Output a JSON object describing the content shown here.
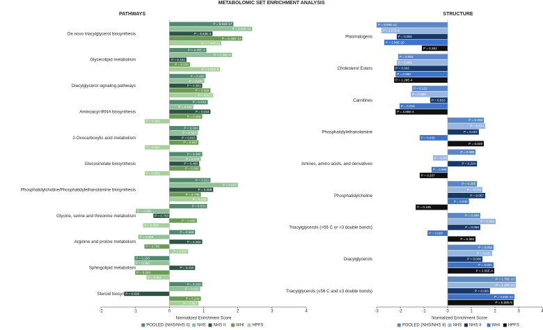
{
  "title": "METABOLOMIC SET ENRICHMENT ANALYSIS",
  "chart_data": [
    {
      "type": "bar",
      "orientation": "horizontal",
      "title": "PATHWAYS",
      "x_label": "Normalized Enrichment Score",
      "categories": [
        "De novo triacylglycerol biosynthesis",
        "Glycerolipid metabolism",
        "Diacylglycerol signaling pathways",
        "Aminoacyl-tRNA biosynthesis",
        "2-Oxocarboxylic acid metabolism",
        "Glucosinolate biosynthesis",
        "Phosphatidylcholine/Phosphatidylethanolamine biosynthesis",
        "Glycine, serine and threonine metabolism",
        "Arginine and proline metabolism",
        "Sphingolipid metabolism",
        "Steroid biosynthesis"
      ],
      "xlim": [
        -2,
        4
      ],
      "xticks": [
        -2,
        -1,
        0,
        1,
        2,
        3,
        4
      ],
      "series": [
        {
          "name": "POOLED (NHS/NHS II)",
          "color": "#4f8a6e",
          "values": [
            1.87,
            1.08,
            1.06,
            1.12,
            0.87,
            0.96,
            1.2,
            1.1,
            0.75,
            -1.02,
            0.96
          ],
          "p_labels": [
            "P = 8.61E-17",
            "P = 4.35E-3",
            "P = 0.153",
            "P = 0.011",
            "P = 0.424",
            "P = 0.260",
            "P = 0.011",
            "P = 0.031",
            "P = 0.968",
            "P = 0.153",
            "P = 0.153"
          ]
        },
        {
          "name": "NHS",
          "color": "#93c098",
          "values": [
            2.42,
            1.83,
            1.02,
            0.7,
            0.83,
            0.92,
            2.0,
            -0.98,
            -0.91,
            -1.02,
            0.9
          ],
          "p_labels": [
            "P = 3.03E-21",
            "P = 3.36E-4",
            "P = 0.237",
            "P = 0.611",
            "P = 0.563",
            "P = 0.276",
            "P = 0.014",
            "P = 0.356",
            "P = 0.309",
            "P = 0.390",
            "P = 0.321"
          ]
        },
        {
          "name": "NHS II",
          "color": "#2d5444",
          "values": [
            1.26,
            0.5,
            0.96,
            1.2,
            0.8,
            0.87,
            1.28,
            -0.47,
            0.96,
            0.75,
            -1.32
          ],
          "p_labels": [
            "P = 8.64E-4",
            "P = 0.191",
            "P = 0.361",
            "P = 0.043",
            "P = 0.615",
            "P = 0.466",
            "P = 0.099",
            "P = 0.793",
            "P = 0.262",
            "P = 0.416",
            "P = 0.036"
          ]
        },
        {
          "name": "WHI",
          "color": "#6b9a52",
          "values": [
            2.13,
            0.6,
            1.2,
            0.96,
            0.85,
            0.9,
            0.92,
            0.8,
            -0.73,
            -1.0,
            0.92
          ],
          "p_labels": [
            "P = 6.46E-13",
            "P = 0.124",
            "P = 0.088",
            "P = 0.366",
            "P = 0.563",
            "P = 0.382",
            "P = 0.795",
            "P = 0.486",
            "P = 0.790",
            "P = 0.325",
            "P = 0.249"
          ]
        },
        {
          "name": "HPFS",
          "color": "#a6cf9c",
          "values": [
            1.52,
            1.48,
            1.28,
            -0.72,
            -0.72,
            -0.72,
            1.12,
            -0.77,
            0.55,
            -0.67,
            0.85
          ],
          "p_labels": [
            "P = 7.40E-11",
            "P = 1.91E-3",
            "P = 0.013",
            "P = 0.351",
            "P = 0.621",
            "P = 0.651",
            "P = 0.348",
            "P = 0.323",
            "P = 0.687",
            "P = 0.651",
            "P = 0.667"
          ]
        }
      ]
    },
    {
      "type": "bar",
      "orientation": "horizontal",
      "title": "STRUCTURE",
      "x_label": "Normalized Enrichment Score",
      "categories": [
        "Plasmalogens",
        "Cholesterol Esters",
        "Carnitines",
        "Phosphatidylethanolamine",
        "Amines, amino acids, and derivatives",
        "Phosphatidylcholine",
        "Triacylglycerols (>56 C or >3 double bonds)",
        "Diacylglycerols",
        "Triacylglycerols (≤56 C and ≤3 double bonds)"
      ],
      "xlim": [
        -3,
        4
      ],
      "xticks": [
        -3,
        -2,
        -1,
        0,
        1,
        2,
        3,
        4
      ],
      "series": [
        {
          "name": "POOLED (NHS/NHS II)",
          "color": "#5b88c4",
          "values": [
            -3.0,
            -2.09,
            -1.5,
            1.53,
            1.18,
            1.24,
            1.38,
            1.94,
            2.88
          ],
          "p_labels": [
            "P = 8.80E-12",
            "P = 0.002",
            "P = 0.122",
            "P = 0.208",
            "P = 0.288",
            "P = 0.295",
            "P = 0.289",
            "P = 0.003",
            "P = 1.75E-13"
          ]
        },
        {
          "name": "NHS",
          "color": "#97b7de",
          "values": [
            -2.8,
            -2.15,
            -1.56,
            1.59,
            -0.62,
            1.47,
            2.03,
            1.88,
            2.88
          ],
          "p_labels": [
            "P = 1.57E-5",
            "P = 0.003",
            "P = 0.089",
            "P = 0.074",
            "P = 0.070",
            "P = 0.074",
            "P = 0.002",
            "P = 0.031",
            "P = 1.16E-10"
          ]
        },
        {
          "name": "NHS II",
          "color": "#17386a",
          "values": [
            -2.15,
            -2.26,
            -0.74,
            1.32,
            1.24,
            1.59,
            1.38,
            1.47,
            1.79
          ],
          "p_labels": [
            "P = 0.003",
            "P = 0.002",
            "P = 0.810",
            "P = 0.207",
            "P = 0.244",
            "P = 0.057",
            "P = 0.099",
            "P = 0.006",
            "P = 0.003"
          ]
        },
        {
          "name": "WHI",
          "color": "#3f73c6",
          "values": [
            -2.68,
            -2.2,
            -2.03,
            -1.18,
            -0.68,
            0.9,
            -0.85,
            1.94,
            2.82
          ],
          "p_labels": [
            "P = 2.98E-10",
            "P = 0.080",
            "P = 0.018",
            "P = 0.433",
            "P = 0.968",
            "P = 0.838",
            "P = 0.683",
            "P = 0.001",
            "P = 3.24E-13"
          ]
        },
        {
          "name": "HPFS",
          "color": "#111111",
          "values": [
            -1.09,
            -2.26,
            -2.2,
            1.53,
            -1.18,
            -1.35,
            1.18,
            1.97,
            2.79
          ],
          "p_labels": [
            "P = 0.352",
            "P = 1.29E-4",
            "P = 3.89E-4",
            "P = 0.028",
            "P = 0.207",
            "P = 0.145",
            "P = 0.352",
            "P = 2.55E-4",
            "P = 5.08E-5"
          ]
        }
      ]
    }
  ]
}
